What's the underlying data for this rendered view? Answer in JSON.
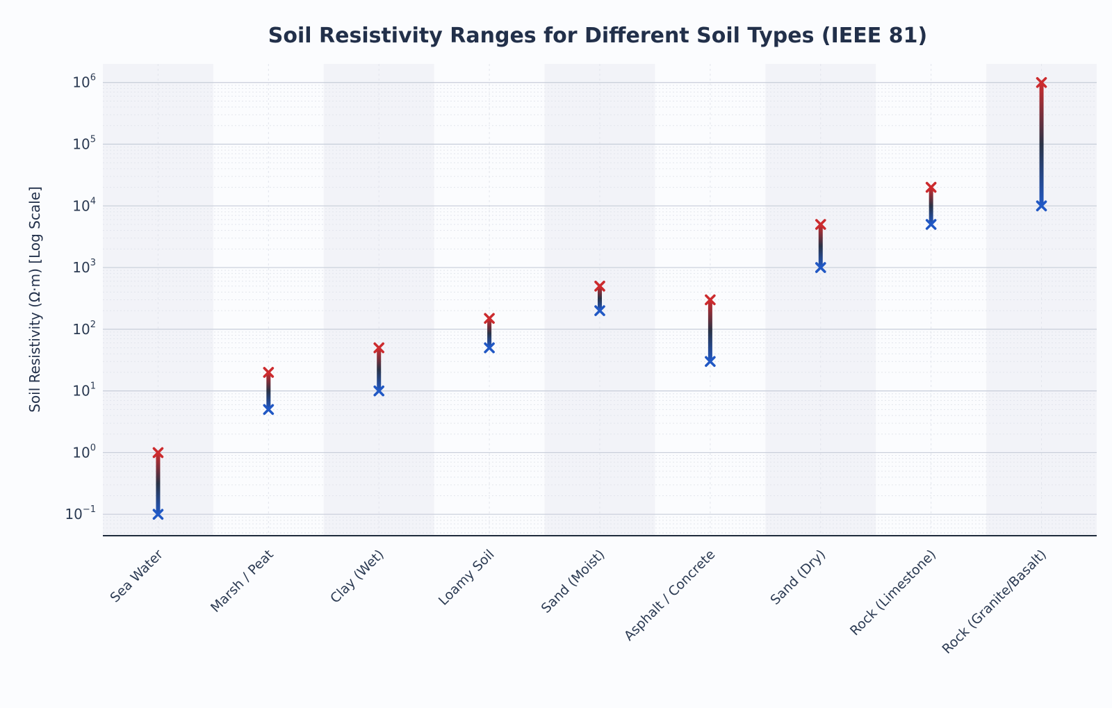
{
  "chart_data": {
    "type": "range",
    "title": "Soil Resistivity Ranges for Different Soil Types (IEEE 81)",
    "ylabel": "Soil Resistivity (Ω·m) [Log Scale]",
    "xlabel": "",
    "y_scale": "log",
    "ylim": [
      0.045,
      2000000
    ],
    "y_ticks": [
      {
        "value": 0.1,
        "base": "10",
        "exp": "−1"
      },
      {
        "value": 1,
        "base": "10",
        "exp": "0"
      },
      {
        "value": 10,
        "base": "10",
        "exp": "1"
      },
      {
        "value": 100,
        "base": "10",
        "exp": "2"
      },
      {
        "value": 1000,
        "base": "10",
        "exp": "3"
      },
      {
        "value": 10000,
        "base": "10",
        "exp": "4"
      },
      {
        "value": 100000,
        "base": "10",
        "exp": "5"
      },
      {
        "value": 1000000,
        "base": "10",
        "exp": "6"
      }
    ],
    "grid": true,
    "categories": [
      "Sea Water",
      "Marsh / Peat",
      "Clay (Wet)",
      "Loamy Soil",
      "Sand (Moist)",
      "Asphalt / Concrete",
      "Sand (Dry)",
      "Rock (Limestone)",
      "Rock (Granite/Basalt)"
    ],
    "series": [
      {
        "values": [
          0.1,
          5,
          10,
          50,
          200,
          30,
          1000,
          5000,
          10000
        ]
      },
      {
        "values": [
          1,
          20,
          50,
          150,
          500,
          300,
          5000,
          20000,
          1000000
        ]
      }
    ],
    "colors": {
      "min_marker": "#2158c4",
      "max_marker": "#cc2b2e",
      "bar_mid": "#2a3346",
      "band": "#f2f3f8",
      "grid_major": "#c7cdd9",
      "grid_minor": "#e2e5ec",
      "axis": "#1e2a3b"
    }
  }
}
